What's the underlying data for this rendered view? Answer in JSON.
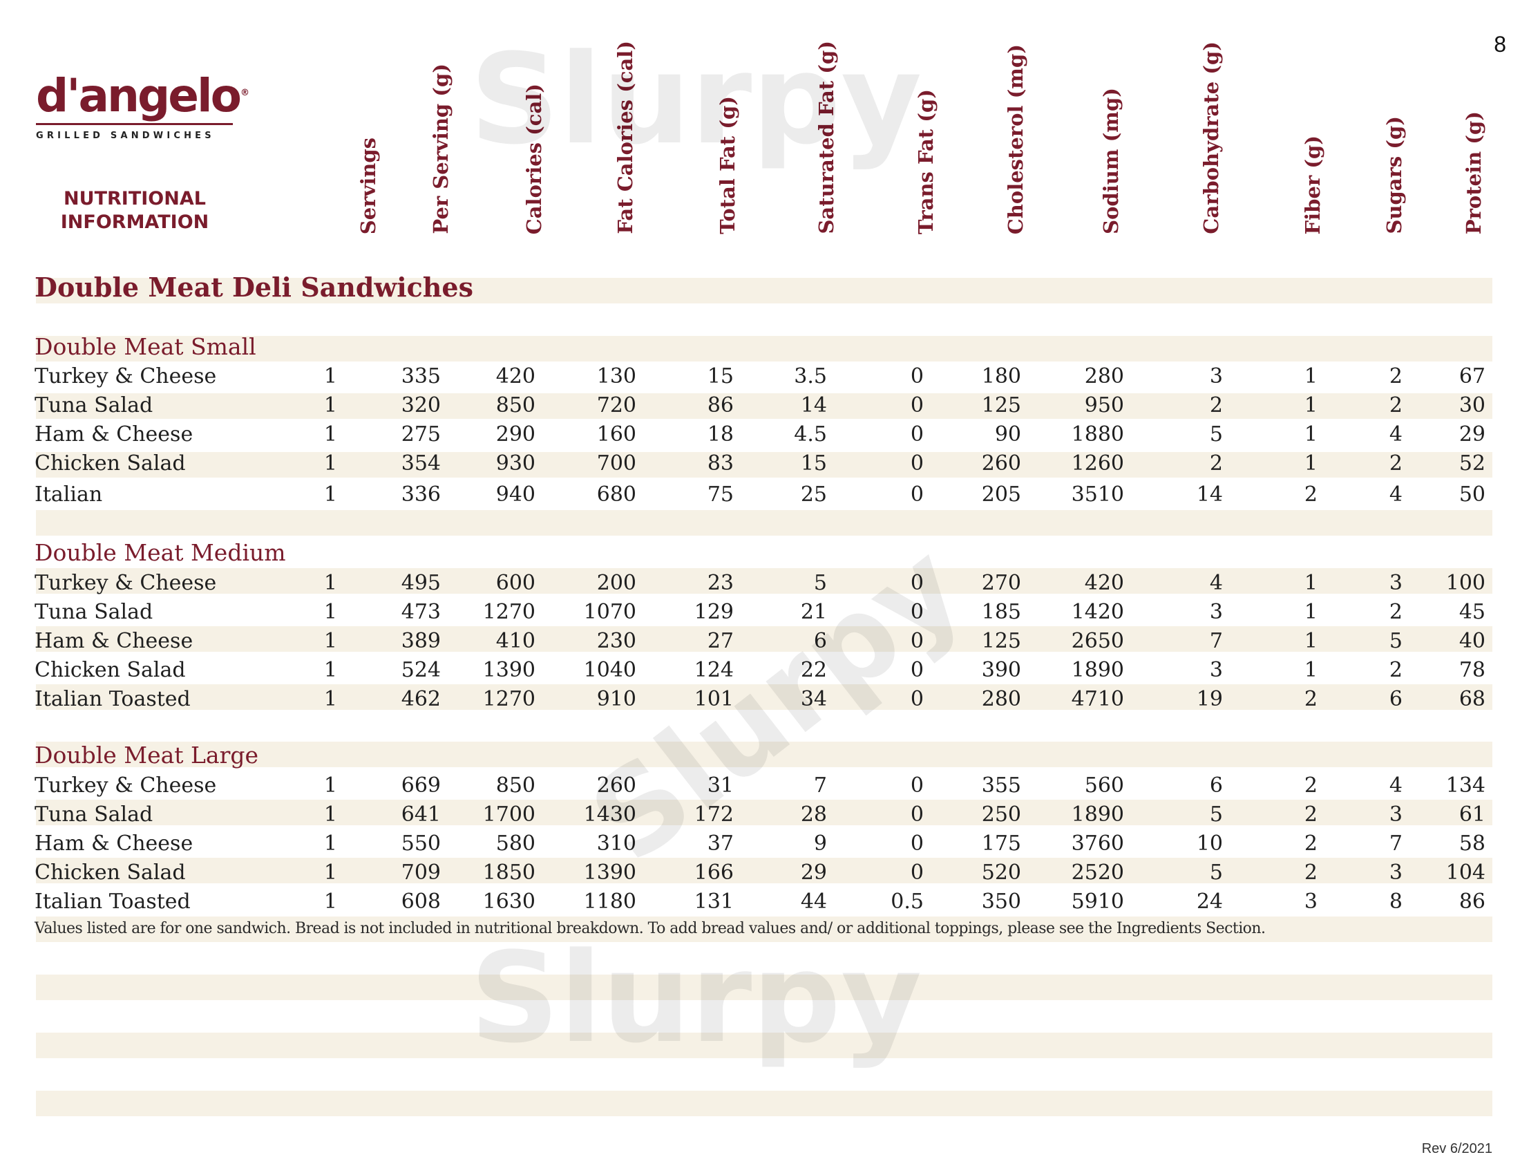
{
  "page": {
    "number": "8",
    "revision": "Rev 6/2021"
  },
  "logo": {
    "wordmark": "d'angelo",
    "registered": "®",
    "tagline": "GRILLED SANDWICHES"
  },
  "heading": {
    "line1": "NUTRITIONAL",
    "line2": "INFORMATION"
  },
  "columns": [
    "Servings",
    "Per Serving (g)",
    "Calories (cal)",
    "Fat Calories (cal)",
    "Total Fat (g)",
    "Saturated Fat (g)",
    "Trans Fat  (g)",
    "Cholesterol (mg)",
    "Sodium (mg)",
    "Carbohydrate (g)",
    "Fiber (g)",
    "Sugars (g)",
    "Protein (g)"
  ],
  "section_title": "Double Meat Deli Sandwiches",
  "groups": [
    {
      "title": "Double Meat Small",
      "rows": [
        {
          "name": "Turkey & Cheese",
          "values": [
            "1",
            "335",
            "420",
            "130",
            "15",
            "3.5",
            "0",
            "180",
            "280",
            "3",
            "1",
            "2",
            "67"
          ]
        },
        {
          "name": "Tuna Salad",
          "values": [
            "1",
            "320",
            "850",
            "720",
            "86",
            "14",
            "0",
            "125",
            "950",
            "2",
            "1",
            "2",
            "30"
          ]
        },
        {
          "name": "Ham & Cheese",
          "values": [
            "1",
            "275",
            "290",
            "160",
            "18",
            "4.5",
            "0",
            "90",
            "1880",
            "5",
            "1",
            "4",
            "29"
          ]
        },
        {
          "name": "Chicken Salad",
          "values": [
            "1",
            "354",
            "930",
            "700",
            "83",
            "15",
            "0",
            "260",
            "1260",
            "2",
            "1",
            "2",
            "52"
          ]
        },
        {
          "name": "Italian",
          "values": [
            "1",
            "336",
            "940",
            "680",
            "75",
            "25",
            "0",
            "205",
            "3510",
            "14",
            "2",
            "4",
            "50"
          ]
        }
      ]
    },
    {
      "title": "Double Meat Medium",
      "rows": [
        {
          "name": "Turkey & Cheese",
          "values": [
            "1",
            "495",
            "600",
            "200",
            "23",
            "5",
            "0",
            "270",
            "420",
            "4",
            "1",
            "3",
            "100"
          ]
        },
        {
          "name": "Tuna Salad",
          "values": [
            "1",
            "473",
            "1270",
            "1070",
            "129",
            "21",
            "0",
            "185",
            "1420",
            "3",
            "1",
            "2",
            "45"
          ]
        },
        {
          "name": "Ham & Cheese",
          "values": [
            "1",
            "389",
            "410",
            "230",
            "27",
            "6",
            "0",
            "125",
            "2650",
            "7",
            "1",
            "5",
            "40"
          ]
        },
        {
          "name": "Chicken Salad",
          "values": [
            "1",
            "524",
            "1390",
            "1040",
            "124",
            "22",
            "0",
            "390",
            "1890",
            "3",
            "1",
            "2",
            "78"
          ]
        },
        {
          "name": "Italian Toasted",
          "values": [
            "1",
            "462",
            "1270",
            "910",
            "101",
            "34",
            "0",
            "280",
            "4710",
            "19",
            "2",
            "6",
            "68"
          ]
        }
      ]
    },
    {
      "title": "Double Meat Large",
      "rows": [
        {
          "name": "Turkey & Cheese",
          "values": [
            "1",
            "669",
            "850",
            "260",
            "31",
            "7",
            "0",
            "355",
            "560",
            "6",
            "2",
            "4",
            "134"
          ]
        },
        {
          "name": "Tuna Salad",
          "values": [
            "1",
            "641",
            "1700",
            "1430",
            "172",
            "28",
            "0",
            "250",
            "1890",
            "5",
            "2",
            "3",
            "61"
          ]
        },
        {
          "name": "Ham & Cheese",
          "values": [
            "1",
            "550",
            "580",
            "310",
            "37",
            "9",
            "0",
            "175",
            "3760",
            "10",
            "2",
            "7",
            "58"
          ]
        },
        {
          "name": "Chicken Salad",
          "values": [
            "1",
            "709",
            "1850",
            "1390",
            "166",
            "29",
            "0",
            "520",
            "2520",
            "5",
            "2",
            "3",
            "104"
          ]
        },
        {
          "name": "Italian Toasted",
          "values": [
            "1",
            "608",
            "1630",
            "1180",
            "131",
            "44",
            "0.5",
            "350",
            "5910",
            "24",
            "3",
            "8",
            "86"
          ]
        }
      ]
    }
  ],
  "footnote": "Values listed are for one sandwich. Bread is not included in nutritional breakdown. To add bread values and/ or additional toppings, please see the Ingredients Section.",
  "watermark": {
    "text": "Slurpy"
  },
  "colors": {
    "accent": "#7a1c2c",
    "band": "#f6f1e5"
  }
}
